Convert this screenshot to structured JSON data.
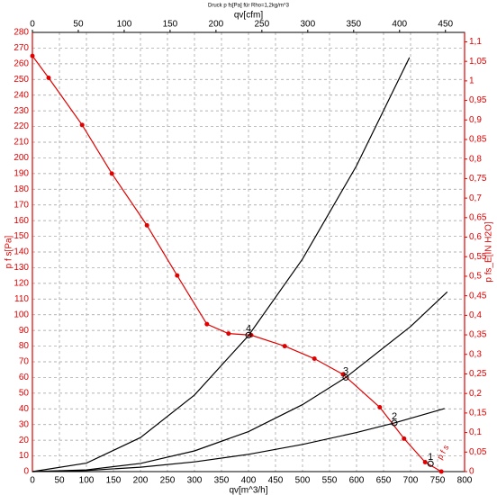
{
  "chart_data": {
    "type": "line",
    "title": "Druck p fs[Pa] für Rho=1,2kg/m^3",
    "x_label": "qv[m^3/h]",
    "x2_label": "qv[cfm]",
    "y_label": "p f s[Pa]",
    "y2_label": "p fs_E[IN H2O]",
    "xlim": [
      0,
      800
    ],
    "xticks": [
      0,
      50,
      100,
      150,
      200,
      250,
      300,
      350,
      400,
      450,
      500,
      550,
      600,
      650,
      700,
      750,
      800
    ],
    "x2lim": [
      0,
      470.86
    ],
    "x2ticks": [
      0,
      50,
      100,
      150,
      200,
      250,
      300,
      350,
      400,
      450
    ],
    "ylim": [
      0,
      280
    ],
    "yticks": [
      0,
      10,
      20,
      30,
      40,
      50,
      60,
      70,
      80,
      90,
      100,
      110,
      120,
      130,
      140,
      150,
      160,
      170,
      180,
      190,
      200,
      210,
      220,
      230,
      240,
      250,
      260,
      270,
      280
    ],
    "y2lim": [
      0,
      1.1241
    ],
    "y2ticks": [
      0,
      {
        "value": 0.05,
        "label": "0,05"
      },
      {
        "value": 0.1,
        "label": "0,1"
      },
      {
        "value": 0.15,
        "label": "0,15"
      },
      {
        "value": 0.2,
        "label": "0,2"
      },
      {
        "value": 0.25,
        "label": "0,25"
      },
      {
        "value": 0.3,
        "label": "0,3"
      },
      {
        "value": 0.35,
        "label": "0,35"
      },
      {
        "value": 0.4,
        "label": "0,4"
      },
      {
        "value": 0.45,
        "label": "0,45"
      },
      {
        "value": 0.5,
        "label": "0,5"
      },
      {
        "value": 0.55,
        "label": "0,55"
      },
      {
        "value": 0.6,
        "label": "0,6"
      },
      {
        "value": 0.65,
        "label": "0,65"
      },
      {
        "value": 0.7,
        "label": "0,7"
      },
      {
        "value": 0.75,
        "label": "0,75"
      },
      {
        "value": 0.8,
        "label": "0,8"
      },
      {
        "value": 0.85,
        "label": "0,85"
      },
      {
        "value": 0.9,
        "label": "0,9"
      },
      {
        "value": 0.95,
        "label": "0,95"
      },
      1,
      {
        "value": 1.05,
        "label": "1,05"
      },
      {
        "value": 1.1,
        "label": "1,1"
      }
    ],
    "grid": true,
    "series": [
      {
        "color": "#e00000",
        "markers": true,
        "x": [
          0,
          30,
          92,
          147,
          212,
          268,
          323,
          363,
          405,
          467,
          522,
          575,
          643,
          688,
          727,
          757
        ],
        "values": [
          265,
          251,
          221,
          190,
          157,
          125,
          94,
          88,
          87,
          80,
          72,
          62,
          41,
          21,
          6,
          0
        ]
      },
      {
        "color": "#000000",
        "markers": false,
        "x": [
          0,
          100,
          200,
          300,
          400,
          500,
          600,
          698
        ],
        "values": [
          0,
          5.4,
          21.7,
          48.8,
          86.7,
          135.5,
          195,
          264
        ]
      },
      {
        "color": "#000000",
        "markers": false,
        "x": [
          0,
          100,
          200,
          300,
          400,
          500,
          580,
          700,
          768
        ],
        "values": [
          0,
          1.1,
          5.2,
          13.2,
          25.5,
          42.7,
          60,
          92.5,
          114.6
        ]
      },
      {
        "color": "#000000",
        "markers": false,
        "x": [
          0,
          100,
          200,
          300,
          400,
          500,
          600,
          670,
          763
        ],
        "values": [
          0,
          0.7,
          2.8,
          6.2,
          11,
          17.3,
          24.9,
          31,
          40.2
        ]
      }
    ],
    "operating_points": [
      {
        "label": "1",
        "x": 737,
        "y": 5
      },
      {
        "label": "2",
        "x": 670,
        "y": 31
      },
      {
        "label": "3",
        "x": 580,
        "y": 60
      },
      {
        "label": "4",
        "x": 400,
        "y": 87
      }
    ],
    "annotation": "p f s"
  }
}
